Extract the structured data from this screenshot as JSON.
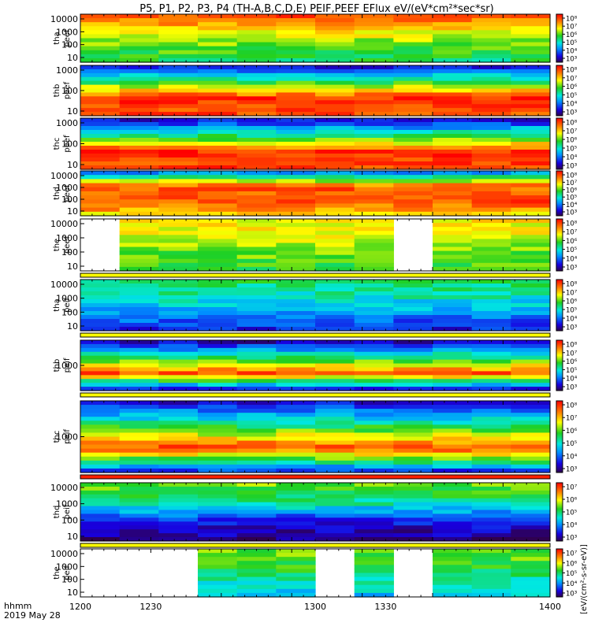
{
  "title": "P5, P1, P2, P3, P4 (TH-A,B,C,D,E) PEIF,PEEF EFlux eV/(eV*cm²*sec*sr)",
  "time_label": "hhmm",
  "date_label": "2019 May 28",
  "colorbar_units_label": "[eV/(cm²-s-sr-eV)]",
  "chart_data": {
    "type": "heatmap",
    "x_axis": {
      "range": [
        "1200",
        "1400"
      ],
      "ticks": [
        "1200",
        "1230",
        "1300",
        "1330",
        "1400"
      ]
    },
    "panels": [
      {
        "probe": "tha",
        "species": "peef",
        "y_ticks": [
          "10000",
          "1000",
          "100",
          "10"
        ],
        "colorbar_ticks": [
          "10⁸",
          "10⁷",
          "10⁶",
          "10⁵",
          "10⁴",
          "10³"
        ],
        "gaps": [],
        "level": [
          0.9,
          0.72,
          0.6,
          0.5
        ]
      },
      {
        "probe": "thb",
        "species": "peef",
        "y_ticks": [
          "1000",
          "100",
          "10"
        ],
        "colorbar_ticks": [
          "10⁸",
          "10⁷",
          "10⁶",
          "10⁵",
          "10⁴",
          "10³"
        ],
        "gaps": [],
        "level": [
          0.15,
          0.55,
          0.95,
          0.9
        ]
      },
      {
        "probe": "thc",
        "species": "peef",
        "y_ticks": [
          "1000",
          "100",
          "10"
        ],
        "colorbar_ticks": [
          "10⁸",
          "10⁷",
          "10⁶",
          "10⁵",
          "10⁴",
          "10³"
        ],
        "gaps": [],
        "level": [
          0.12,
          0.5,
          0.95,
          0.92
        ]
      },
      {
        "probe": "thd",
        "species": "peef",
        "y_ticks": [
          "10000",
          "1000",
          "100",
          "10"
        ],
        "colorbar_ticks": [
          "10⁸",
          "10⁷",
          "10⁶",
          "10⁵",
          "10⁴",
          "10³"
        ],
        "gaps": [],
        "level": [
          0.3,
          0.88,
          0.92,
          0.75
        ]
      },
      {
        "probe": "the",
        "species": "peef",
        "y_ticks": [
          "10000",
          "1000",
          "100",
          "10"
        ],
        "colorbar_ticks": [
          "10⁸",
          "10⁷",
          "10⁶",
          "10⁵",
          "10⁴",
          "10³"
        ],
        "gaps": [
          [
            1200,
            1215
          ],
          [
            1252,
            1259
          ],
          [
            1326,
            1346
          ]
        ],
        "level": [
          0.72,
          0.68,
          0.6,
          0.55
        ]
      },
      {
        "probe": "tha",
        "species": "peif",
        "y_ticks": [
          "10000",
          "1000",
          "100",
          "10"
        ],
        "colorbar_ticks": [
          "10⁸",
          "10⁷",
          "10⁶",
          "10⁵",
          "10⁴",
          "10³"
        ],
        "gaps": [],
        "level": [
          0.5,
          0.42,
          0.3,
          0.15
        ]
      },
      {
        "probe": "thb",
        "species": "peif",
        "y_ticks": [
          "1000"
        ],
        "colorbar_ticks": [
          "10⁸",
          "10⁷",
          "10⁶",
          "10⁵",
          "10⁴",
          "10³"
        ],
        "gaps": [],
        "level": [
          0.1,
          0.5,
          0.9,
          0.15
        ]
      },
      {
        "probe": "thc",
        "species": "peif",
        "y_ticks": [
          "1000"
        ],
        "colorbar_ticks": [
          "10⁸",
          "10⁷",
          "10⁶",
          "10⁵",
          "10⁴",
          "10³"
        ],
        "gaps": [],
        "level": [
          0.12,
          0.5,
          0.92,
          0.2
        ]
      },
      {
        "probe": "thd",
        "species": "peif",
        "y_ticks": [
          "10000",
          "1000",
          "100",
          "10"
        ],
        "colorbar_ticks": [
          "10⁷",
          "10⁶",
          "10⁵",
          "10⁴",
          "10³"
        ],
        "gaps": [],
        "level": [
          0.6,
          0.45,
          0.15,
          0.05
        ]
      },
      {
        "probe": "the",
        "species": "peif",
        "y_ticks": [
          "10000",
          "1000",
          "100",
          "10"
        ],
        "colorbar_ticks": [
          "10⁷",
          "10⁶",
          "10⁵",
          "10⁴",
          "10³"
        ],
        "gaps": [
          [
            1200,
            1222
          ],
          [
            1233,
            1242
          ],
          [
            1300,
            1310
          ],
          [
            1326,
            1335
          ],
          [
            1392,
            1400
          ]
        ],
        "level": [
          0.6,
          0.55,
          0.45,
          0.35
        ]
      }
    ]
  }
}
